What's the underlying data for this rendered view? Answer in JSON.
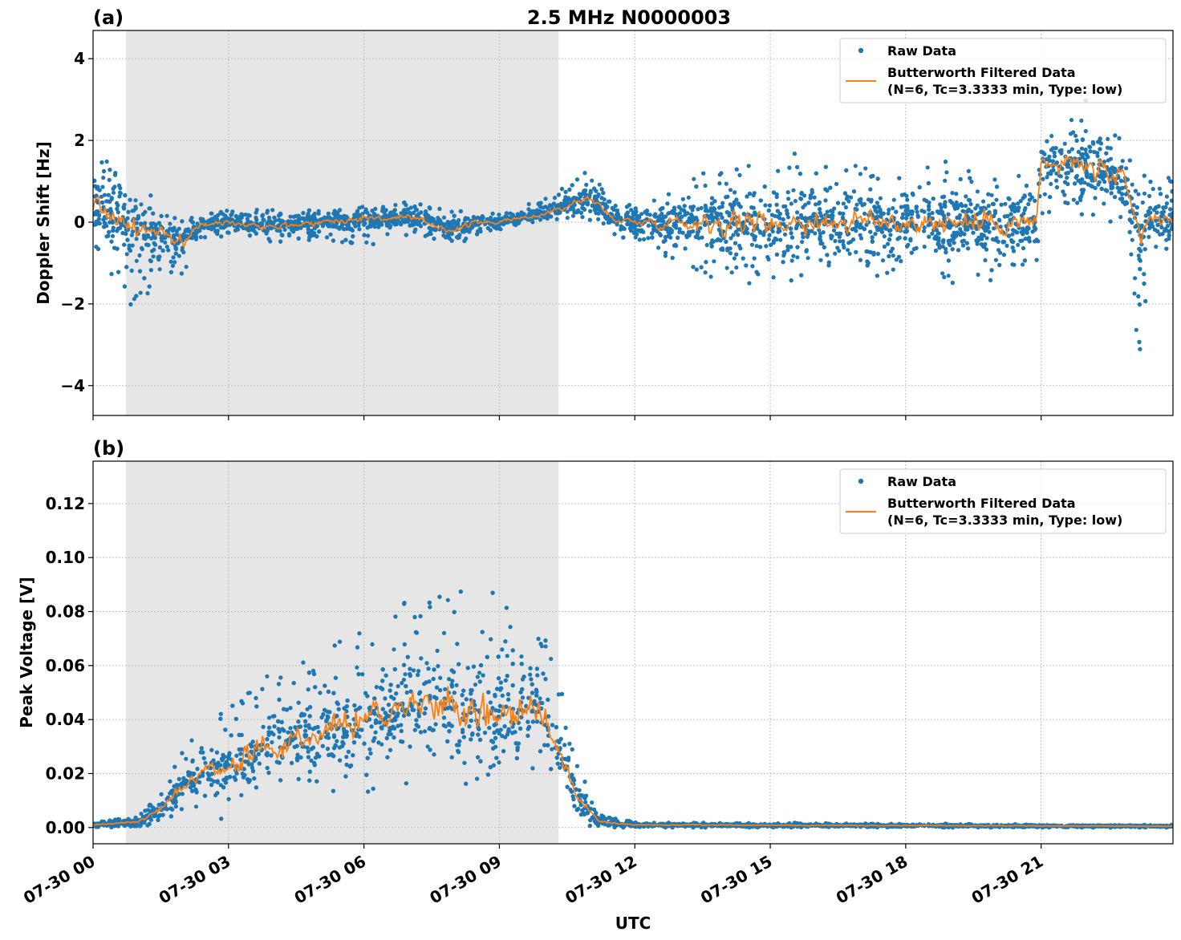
{
  "figure_title": "2.5 MHz N0000003",
  "colors": {
    "raw": "#1f77b4",
    "filtered": "#ff7f0e",
    "shade": "#e6e6e6",
    "grid": "#b0b0b0"
  },
  "chart_data": [
    {
      "panel_label": "(a)",
      "type": "scatter",
      "ylabel": "Doppler Shift [Hz]",
      "xlabel": "",
      "ylim": [
        -4.73,
        4.69
      ],
      "xlim_hours": [
        0,
        23.92
      ],
      "yticks": [
        -4,
        -2,
        0,
        2,
        4
      ],
      "ytick_labels": [
        "−4",
        "−2",
        "0",
        "2",
        "4"
      ],
      "grid": true,
      "legend_placement": "top-right",
      "legend": [
        "Raw Data",
        "Butterworth Filtered Data",
        "(N=6, Tc=3.3333 min, Type: low)"
      ],
      "shaded_interval_hours": [
        0.73,
        10.31
      ],
      "hours": [
        0,
        0.5,
        0.8,
        1.5,
        2.0,
        2.3,
        3,
        4,
        5,
        6,
        7,
        8,
        8.5,
        9,
        10,
        11,
        11.5,
        12,
        13,
        14,
        15,
        16,
        17,
        18,
        19,
        20,
        20.9,
        21,
        22,
        22.8,
        23.2,
        23.4,
        23.92
      ],
      "filtered": [
        0.5,
        0.1,
        -0.1,
        -0.3,
        -0.5,
        -0.1,
        0,
        -0.1,
        0,
        0.1,
        0.1,
        -0.2,
        0,
        0,
        0.2,
        0.6,
        0.1,
        0,
        0,
        0,
        0,
        0,
        0,
        0,
        0,
        0,
        0,
        1.4,
        1.4,
        1.0,
        -0.5,
        0.1,
        0
      ],
      "raw_low": [
        -0.8,
        -1.5,
        -2.5,
        -1.2,
        -1.4,
        -0.5,
        -0.3,
        -0.6,
        -0.4,
        -0.6,
        -0.3,
        -0.7,
        -0.3,
        -0.2,
        0,
        0.1,
        -0.3,
        -0.5,
        -1.0,
        -1.6,
        -1.5,
        -1.5,
        -1.5,
        -1.5,
        -1.5,
        -1.5,
        -1.3,
        0.2,
        0,
        0,
        -3.5,
        -0.8,
        -0.7
      ],
      "raw_high": [
        2.0,
        1.2,
        0.6,
        0.3,
        0.1,
        0.3,
        0.3,
        0.3,
        0.3,
        0.4,
        0.5,
        0.3,
        0.3,
        0.2,
        0.6,
        1.3,
        0.5,
        0.4,
        1.0,
        1.6,
        1.7,
        1.5,
        1.5,
        1.5,
        1.5,
        1.5,
        1.3,
        2.8,
        3.2,
        2.6,
        1.5,
        1.3,
        1.1
      ]
    },
    {
      "panel_label": "(b)",
      "type": "scatter",
      "ylabel": "Peak Voltage [V]",
      "xlabel": "UTC",
      "ylim": [
        -0.006,
        0.1357
      ],
      "xlim_hours": [
        0,
        23.92
      ],
      "yticks": [
        0,
        0.02,
        0.04,
        0.06,
        0.08,
        0.1,
        0.12
      ],
      "ytick_labels": [
        "0.00",
        "0.02",
        "0.04",
        "0.06",
        "0.08",
        "0.10",
        "0.12"
      ],
      "grid": true,
      "legend_placement": "top-right",
      "legend": [
        "Raw Data",
        "Butterworth Filtered Data",
        "(N=6, Tc=3.3333 min, Type: low)"
      ],
      "shaded_interval_hours": [
        0.73,
        10.31
      ],
      "hours": [
        0,
        1,
        1.5,
        2,
        2.5,
        3,
        3.5,
        4,
        5,
        6,
        7,
        8,
        9,
        9.8,
        10.3,
        10.7,
        11.2,
        12,
        23.92
      ],
      "filtered": [
        0.001,
        0.002,
        0.007,
        0.015,
        0.022,
        0.022,
        0.028,
        0.03,
        0.035,
        0.04,
        0.045,
        0.045,
        0.04,
        0.045,
        0.03,
        0.012,
        0.002,
        0.001,
        0.0005
      ],
      "raw_low": [
        0,
        0,
        0.002,
        0.005,
        0.008,
        0.008,
        0.01,
        0.012,
        0.012,
        0.014,
        0.016,
        0.02,
        0.015,
        0.015,
        0.01,
        0.003,
        0,
        0,
        0
      ],
      "raw_high": [
        0.002,
        0.004,
        0.013,
        0.03,
        0.045,
        0.045,
        0.06,
        0.06,
        0.07,
        0.075,
        0.085,
        0.09,
        0.09,
        0.085,
        0.06,
        0.025,
        0.005,
        0.002,
        0.001
      ]
    }
  ],
  "xticks_hours": [
    0,
    3,
    6,
    9,
    12,
    15,
    18,
    21
  ],
  "xtick_labels": [
    "07-30 00",
    "07-30 03",
    "07-30 06",
    "07-30 09",
    "07-30 12",
    "07-30 15",
    "07-30 18",
    "07-30 21"
  ]
}
